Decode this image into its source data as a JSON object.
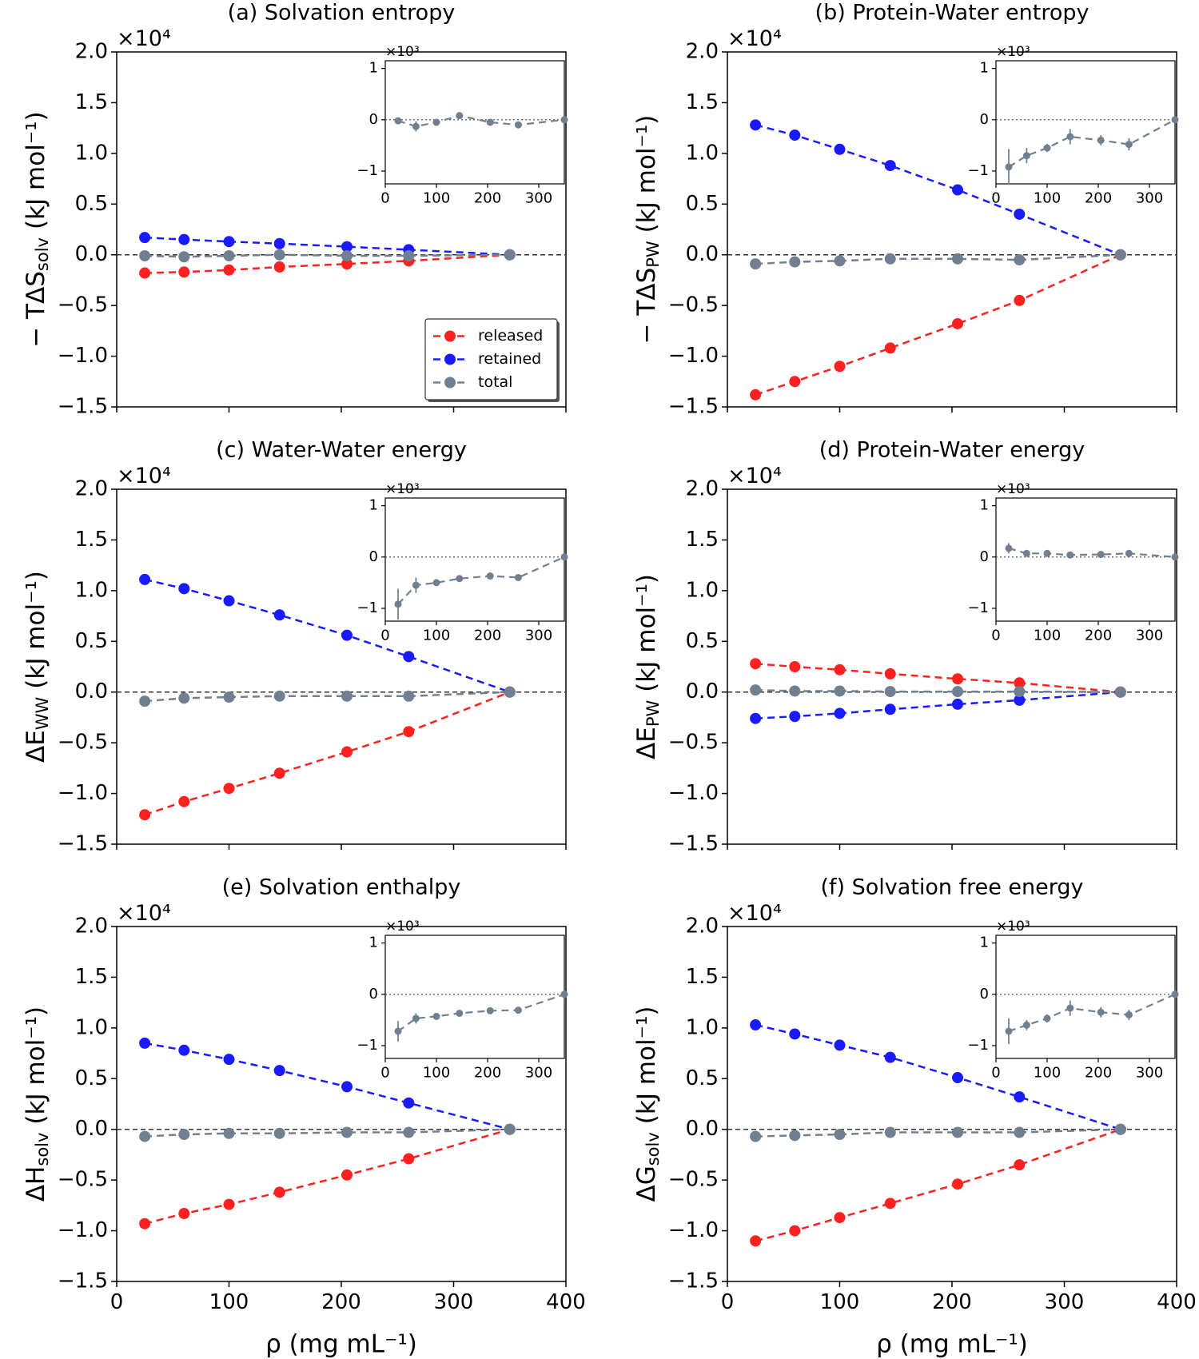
{
  "chart_data": [
    {
      "type": "line",
      "title": "(a) Solvation entropy",
      "offset_label": "×10⁴",
      "ylabel": {
        "main": "− TΔS",
        "sub": "solv",
        "unit": "(kJ mol⁻¹)"
      },
      "x": [
        25,
        60,
        100,
        145,
        205,
        260,
        350
      ],
      "xlim": [
        0,
        400
      ],
      "xticks": [
        0,
        100,
        200,
        300,
        400
      ],
      "ylim": [
        -1.5,
        2.0
      ],
      "yticks": [
        {
          "value": -1.5,
          "label": "−1.5"
        },
        {
          "value": -1.0,
          "label": "−1.0"
        },
        {
          "value": -0.5,
          "label": "−0.5"
        },
        {
          "value": 0,
          "label": "0.0"
        },
        {
          "value": 0.5,
          "label": "0.5"
        },
        {
          "value": 1.0,
          "label": "1.0"
        },
        {
          "value": 1.5,
          "label": "1.5"
        },
        {
          "value": 2.0,
          "label": "2.0"
        }
      ],
      "legend": "lower right",
      "series": [
        {
          "name": "released",
          "color": "#ff2020",
          "values": [
            -0.18,
            -0.17,
            -0.15,
            -0.12,
            -0.09,
            -0.06,
            0
          ]
        },
        {
          "name": "retained",
          "color": "#1a1aff",
          "values": [
            0.17,
            0.15,
            0.13,
            0.11,
            0.08,
            0.05,
            0
          ]
        },
        {
          "name": "total",
          "color": "#708090",
          "values": [
            -0.01,
            -0.02,
            -0.01,
            0.0,
            -0.01,
            -0.01,
            0
          ]
        }
      ],
      "inset": {
        "type": "line",
        "offset_label": "×10³",
        "x": [
          25,
          60,
          100,
          145,
          205,
          260,
          350
        ],
        "xlim": [
          0,
          350
        ],
        "xticks": [
          0,
          100,
          200,
          300
        ],
        "xtick_labels": true,
        "ylim": [
          -1.25,
          1.15
        ],
        "yticks": [
          {
            "value": -1,
            "label": "−1"
          },
          0,
          1
        ],
        "series": [
          {
            "name": "total",
            "color": "#708090",
            "values": [
              -0.02,
              -0.13,
              -0.05,
              0.08,
              -0.05,
              -0.1,
              0
            ],
            "errors": [
              0.06,
              0.1,
              0.05,
              0.06,
              0.04,
              0.05,
              0
            ]
          }
        ]
      }
    },
    {
      "type": "line",
      "title": "(b) Protein-Water entropy",
      "offset_label": "×10⁴",
      "ylabel": {
        "main": "− TΔS",
        "sub": "PW",
        "unit": "(kJ mol⁻¹)"
      },
      "x": [
        25,
        60,
        100,
        145,
        205,
        260,
        350
      ],
      "xlim": [
        0,
        400
      ],
      "xticks": [
        0,
        100,
        200,
        300,
        400
      ],
      "ylim": [
        -1.5,
        2.0
      ],
      "yticks": [
        {
          "value": -1.5,
          "label": "−1.5"
        },
        {
          "value": -1.0,
          "label": "−1.0"
        },
        {
          "value": -0.5,
          "label": "−0.5"
        },
        {
          "value": 0,
          "label": "0.0"
        },
        {
          "value": 0.5,
          "label": "0.5"
        },
        {
          "value": 1.0,
          "label": "1.0"
        },
        {
          "value": 1.5,
          "label": "1.5"
        },
        {
          "value": 2.0,
          "label": "2.0"
        }
      ],
      "series": [
        {
          "name": "released",
          "color": "#ff2020",
          "values": [
            -1.38,
            -1.25,
            -1.1,
            -0.92,
            -0.68,
            -0.45,
            0
          ]
        },
        {
          "name": "retained",
          "color": "#1a1aff",
          "values": [
            1.28,
            1.18,
            1.04,
            0.88,
            0.64,
            0.4,
            0
          ]
        },
        {
          "name": "total",
          "color": "#708090",
          "values": [
            -0.09,
            -0.07,
            -0.06,
            -0.04,
            -0.04,
            -0.05,
            0
          ]
        }
      ],
      "inset": {
        "type": "line",
        "offset_label": "×10³",
        "x": [
          25,
          60,
          100,
          145,
          205,
          260,
          350
        ],
        "xlim": [
          0,
          350
        ],
        "xticks": [
          0,
          100,
          200,
          300
        ],
        "xtick_labels": true,
        "ylim": [
          -1.25,
          1.15
        ],
        "yticks": [
          {
            "value": -1,
            "label": "−1"
          },
          0,
          1
        ],
        "series": [
          {
            "name": "total",
            "color": "#708090",
            "values": [
              -0.92,
              -0.7,
              -0.55,
              -0.33,
              -0.4,
              -0.48,
              0
            ],
            "errors": [
              0.35,
              0.15,
              0.08,
              0.15,
              0.1,
              0.12,
              0
            ]
          }
        ]
      }
    },
    {
      "type": "line",
      "title": "(c) Water-Water energy",
      "offset_label": "×10⁴",
      "ylabel": {
        "main": "ΔE",
        "sub": "WW",
        "unit": "(kJ mol⁻¹)"
      },
      "x": [
        25,
        60,
        100,
        145,
        205,
        260,
        350
      ],
      "xlim": [
        0,
        400
      ],
      "xticks": [
        0,
        100,
        200,
        300,
        400
      ],
      "ylim": [
        -1.5,
        2.0
      ],
      "yticks": [
        {
          "value": -1.5,
          "label": "−1.5"
        },
        {
          "value": -1.0,
          "label": "−1.0"
        },
        {
          "value": -0.5,
          "label": "−0.5"
        },
        {
          "value": 0,
          "label": "0.0"
        },
        {
          "value": 0.5,
          "label": "0.5"
        },
        {
          "value": 1.0,
          "label": "1.0"
        },
        {
          "value": 1.5,
          "label": "1.5"
        },
        {
          "value": 2.0,
          "label": "2.0"
        }
      ],
      "series": [
        {
          "name": "released",
          "color": "#ff2020",
          "values": [
            -1.21,
            -1.08,
            -0.95,
            -0.8,
            -0.59,
            -0.39,
            0
          ]
        },
        {
          "name": "retained",
          "color": "#1a1aff",
          "values": [
            1.11,
            1.02,
            0.9,
            0.76,
            0.56,
            0.35,
            0
          ]
        },
        {
          "name": "total",
          "color": "#708090",
          "values": [
            -0.09,
            -0.06,
            -0.05,
            -0.04,
            -0.04,
            -0.04,
            0
          ]
        }
      ],
      "inset": {
        "type": "line",
        "offset_label": "×10³",
        "x": [
          25,
          60,
          100,
          145,
          205,
          260,
          350
        ],
        "xlim": [
          0,
          350
        ],
        "xticks": [
          0,
          100,
          200,
          300
        ],
        "xtick_labels": true,
        "ylim": [
          -1.25,
          1.15
        ],
        "yticks": [
          {
            "value": -1,
            "label": "−1"
          },
          0,
          1
        ],
        "series": [
          {
            "name": "total",
            "color": "#708090",
            "values": [
              -0.92,
              -0.55,
              -0.5,
              -0.42,
              -0.37,
              -0.4,
              0
            ],
            "errors": [
              0.3,
              0.15,
              0.06,
              0.06,
              0.05,
              0.06,
              0
            ]
          }
        ]
      }
    },
    {
      "type": "line",
      "title": "(d) Protein-Water energy",
      "offset_label": "×10⁴",
      "ylabel": {
        "main": "ΔE",
        "sub": "PW",
        "unit": "(kJ mol⁻¹)"
      },
      "x": [
        25,
        60,
        100,
        145,
        205,
        260,
        350
      ],
      "xlim": [
        0,
        400
      ],
      "xticks": [
        0,
        100,
        200,
        300,
        400
      ],
      "ylim": [
        -1.5,
        2.0
      ],
      "yticks": [
        {
          "value": -1.5,
          "label": "−1.5"
        },
        {
          "value": -1.0,
          "label": "−1.0"
        },
        {
          "value": -0.5,
          "label": "−0.5"
        },
        {
          "value": 0,
          "label": "0.0"
        },
        {
          "value": 0.5,
          "label": "0.5"
        },
        {
          "value": 1.0,
          "label": "1.0"
        },
        {
          "value": 1.5,
          "label": "1.5"
        },
        {
          "value": 2.0,
          "label": "2.0"
        }
      ],
      "series": [
        {
          "name": "released",
          "color": "#ff2020",
          "values": [
            0.28,
            0.25,
            0.22,
            0.18,
            0.13,
            0.09,
            0
          ]
        },
        {
          "name": "retained",
          "color": "#1a1aff",
          "values": [
            -0.26,
            -0.24,
            -0.21,
            -0.17,
            -0.12,
            -0.08,
            0
          ]
        },
        {
          "name": "total",
          "color": "#708090",
          "values": [
            0.02,
            0.01,
            0.01,
            0.005,
            0.005,
            0.005,
            0
          ]
        }
      ],
      "inset": {
        "type": "line",
        "offset_label": "×10³",
        "x": [
          25,
          60,
          100,
          145,
          205,
          260,
          350
        ],
        "xlim": [
          0,
          350
        ],
        "xticks": [
          0,
          100,
          200,
          300
        ],
        "xtick_labels": true,
        "ylim": [
          -1.25,
          1.15
        ],
        "yticks": [
          {
            "value": -1,
            "label": "−1"
          },
          0,
          1
        ],
        "series": [
          {
            "name": "total",
            "color": "#708090",
            "values": [
              0.17,
              0.07,
              0.07,
              0.04,
              0.05,
              0.07,
              0
            ],
            "errors": [
              0.1,
              0.04,
              0.04,
              0.03,
              0.03,
              0.03,
              0
            ]
          }
        ]
      }
    },
    {
      "type": "line",
      "title": "(e) Solvation enthalpy",
      "offset_label": "×10⁴",
      "ylabel": {
        "main": "ΔH",
        "sub": "solv",
        "unit": "(kJ mol⁻¹)"
      },
      "xlabel": "ρ (mg mL⁻¹)",
      "x": [
        25,
        60,
        100,
        145,
        205,
        260,
        350
      ],
      "xlim": [
        0,
        400
      ],
      "xticks": [
        0,
        100,
        200,
        300,
        400
      ],
      "xtick_labels": true,
      "ylim": [
        -1.5,
        2.0
      ],
      "yticks": [
        {
          "value": -1.5,
          "label": "−1.5"
        },
        {
          "value": -1.0,
          "label": "−1.0"
        },
        {
          "value": -0.5,
          "label": "−0.5"
        },
        {
          "value": 0,
          "label": "0.0"
        },
        {
          "value": 0.5,
          "label": "0.5"
        },
        {
          "value": 1.0,
          "label": "1.0"
        },
        {
          "value": 1.5,
          "label": "1.5"
        },
        {
          "value": 2.0,
          "label": "2.0"
        }
      ],
      "series": [
        {
          "name": "released",
          "color": "#ff2020",
          "values": [
            -0.93,
            -0.83,
            -0.74,
            -0.62,
            -0.45,
            -0.29,
            0
          ]
        },
        {
          "name": "retained",
          "color": "#1a1aff",
          "values": [
            0.85,
            0.78,
            0.69,
            0.58,
            0.42,
            0.26,
            0
          ]
        },
        {
          "name": "total",
          "color": "#708090",
          "values": [
            -0.07,
            -0.05,
            -0.04,
            -0.04,
            -0.03,
            -0.03,
            0
          ]
        }
      ],
      "inset": {
        "type": "line",
        "offset_label": "×10³",
        "x": [
          25,
          60,
          100,
          145,
          205,
          260,
          350
        ],
        "xlim": [
          0,
          350
        ],
        "xticks": [
          0,
          100,
          200,
          300
        ],
        "xtick_labels": true,
        "ylim": [
          -1.25,
          1.15
        ],
        "yticks": [
          {
            "value": -1,
            "label": "−1"
          },
          0,
          1
        ],
        "series": [
          {
            "name": "total",
            "color": "#708090",
            "values": [
              -0.72,
              -0.47,
              -0.43,
              -0.37,
              -0.32,
              -0.31,
              0
            ],
            "errors": [
              0.2,
              0.1,
              0.05,
              0.05,
              0.04,
              0.04,
              0
            ]
          }
        ]
      }
    },
    {
      "type": "line",
      "title": "(f) Solvation free energy",
      "offset_label": "×10⁴",
      "ylabel": {
        "main": "ΔG",
        "sub": "solv",
        "unit": "(kJ mol⁻¹)"
      },
      "xlabel": "ρ (mg mL⁻¹)",
      "x": [
        25,
        60,
        100,
        145,
        205,
        260,
        350
      ],
      "xlim": [
        0,
        400
      ],
      "xticks": [
        0,
        100,
        200,
        300,
        400
      ],
      "xtick_labels": true,
      "ylim": [
        -1.5,
        2.0
      ],
      "yticks": [
        {
          "value": -1.5,
          "label": "−1.5"
        },
        {
          "value": -1.0,
          "label": "−1.0"
        },
        {
          "value": -0.5,
          "label": "−0.5"
        },
        {
          "value": 0,
          "label": "0.0"
        },
        {
          "value": 0.5,
          "label": "0.5"
        },
        {
          "value": 1.0,
          "label": "1.0"
        },
        {
          "value": 1.5,
          "label": "1.5"
        },
        {
          "value": 2.0,
          "label": "2.0"
        }
      ],
      "series": [
        {
          "name": "released",
          "color": "#ff2020",
          "values": [
            -1.1,
            -1.0,
            -0.87,
            -0.73,
            -0.54,
            -0.35,
            0
          ]
        },
        {
          "name": "retained",
          "color": "#1a1aff",
          "values": [
            1.03,
            0.94,
            0.83,
            0.71,
            0.51,
            0.32,
            0
          ]
        },
        {
          "name": "total",
          "color": "#708090",
          "values": [
            -0.07,
            -0.06,
            -0.05,
            -0.03,
            -0.03,
            -0.03,
            0
          ]
        }
      ],
      "inset": {
        "type": "line",
        "offset_label": "×10³",
        "x": [
          25,
          60,
          100,
          145,
          205,
          260,
          350
        ],
        "xlim": [
          0,
          350
        ],
        "xticks": [
          0,
          100,
          200,
          300
        ],
        "xtick_labels": true,
        "ylim": [
          -1.25,
          1.15
        ],
        "yticks": [
          {
            "value": -1,
            "label": "−1"
          },
          0,
          1
        ],
        "series": [
          {
            "name": "total",
            "color": "#708090",
            "values": [
              -0.72,
              -0.6,
              -0.47,
              -0.27,
              -0.35,
              -0.4,
              0
            ],
            "errors": [
              0.25,
              0.1,
              0.08,
              0.15,
              0.1,
              0.1,
              0
            ]
          }
        ]
      }
    }
  ]
}
